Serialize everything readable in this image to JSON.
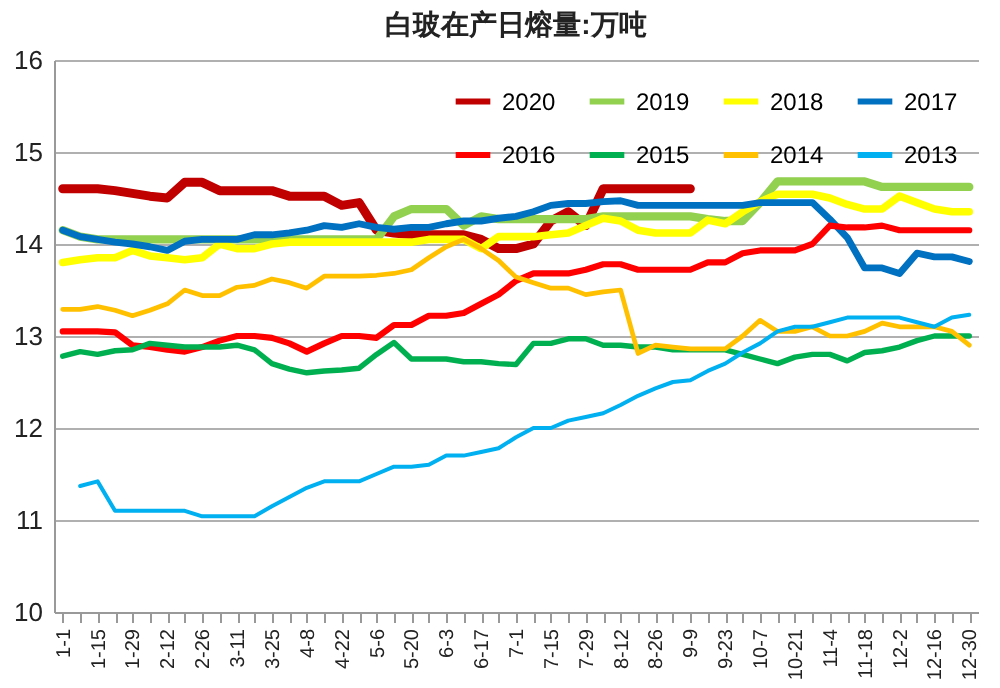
{
  "chart_data": {
    "type": "line",
    "title": "白玻在产日熔量:万吨",
    "categories": [
      "1-1",
      null,
      "1-15",
      null,
      "1-29",
      null,
      "2-12",
      null,
      "2-26",
      null,
      "3-11",
      null,
      "3-25",
      null,
      "4-8",
      null,
      "4-22",
      null,
      "5-6",
      null,
      "5-20",
      null,
      "6-3",
      null,
      "6-17",
      null,
      "7-1",
      null,
      "7-15",
      null,
      "7-29",
      null,
      "8-12",
      null,
      "8-26",
      null,
      "9-9",
      null,
      "9-23",
      null,
      "10-7",
      null,
      "10-21",
      null,
      "11-4",
      null,
      "11-18",
      null,
      "12-2",
      null,
      "12-16",
      null,
      "12-30"
    ],
    "ylim": [
      10,
      16
    ],
    "yticks": [
      10,
      11,
      12,
      13,
      14,
      15,
      16
    ],
    "grid": "y",
    "legend": "top right",
    "marker": "none",
    "series": [
      {
        "name": "2020",
        "color": "#c00000",
        "values": [
          14.6,
          14.6,
          14.6,
          14.58,
          14.55,
          14.52,
          14.5,
          14.67,
          14.67,
          14.58,
          14.58,
          14.58,
          14.58,
          14.52,
          14.52,
          14.52,
          14.42,
          14.45,
          14.15,
          14.12,
          14.1,
          14.1,
          14.1,
          14.1,
          14.05,
          13.95,
          13.95,
          14.0,
          14.25,
          14.35,
          14.2,
          14.6,
          14.6,
          14.6,
          14.6,
          14.6,
          14.6,
          null,
          null,
          null,
          null,
          null,
          null,
          null,
          null,
          null,
          null,
          null,
          null,
          null,
          null,
          null,
          null
        ]
      },
      {
        "name": "2019",
        "color": "#92d050",
        "values": [
          14.15,
          14.08,
          14.05,
          14.05,
          14.05,
          14.05,
          14.05,
          14.05,
          14.05,
          14.05,
          14.05,
          14.05,
          14.05,
          14.05,
          14.05,
          14.05,
          14.05,
          14.05,
          14.05,
          14.3,
          14.38,
          14.38,
          14.38,
          14.2,
          14.3,
          14.27,
          14.27,
          14.27,
          14.27,
          14.27,
          14.27,
          14.3,
          14.3,
          14.3,
          14.3,
          14.3,
          14.3,
          14.27,
          14.25,
          14.25,
          14.45,
          14.68,
          14.68,
          14.68,
          14.68,
          14.68,
          14.68,
          14.62,
          14.62,
          14.62,
          14.62,
          14.62,
          14.62
        ]
      },
      {
        "name": "2018",
        "color": "#ffff00",
        "values": [
          13.8,
          13.83,
          13.85,
          13.85,
          13.93,
          13.87,
          13.85,
          13.83,
          13.85,
          14.0,
          13.95,
          13.95,
          14.0,
          14.02,
          14.02,
          14.02,
          14.02,
          14.02,
          14.02,
          14.02,
          14.02,
          14.05,
          14.05,
          14.05,
          13.95,
          14.08,
          14.08,
          14.08,
          14.1,
          14.12,
          14.2,
          14.28,
          14.25,
          14.15,
          14.12,
          14.12,
          14.12,
          14.26,
          14.22,
          14.35,
          14.46,
          14.54,
          14.54,
          14.54,
          14.5,
          14.43,
          14.38,
          14.38,
          14.52,
          14.45,
          14.38,
          14.35,
          14.35
        ]
      },
      {
        "name": "2017",
        "color": "#0070c0",
        "values": [
          14.15,
          14.08,
          14.05,
          14.02,
          14.0,
          13.97,
          13.93,
          14.03,
          14.05,
          14.05,
          14.05,
          14.1,
          14.1,
          14.12,
          14.15,
          14.2,
          14.18,
          14.22,
          14.18,
          14.16,
          14.18,
          14.18,
          14.22,
          14.25,
          14.25,
          14.28,
          14.3,
          14.35,
          14.42,
          14.44,
          14.44,
          14.46,
          14.47,
          14.42,
          14.42,
          14.42,
          14.42,
          14.42,
          14.42,
          14.42,
          14.45,
          14.45,
          14.45,
          14.45,
          14.27,
          14.07,
          13.74,
          13.74,
          13.68,
          13.9,
          13.86,
          13.86,
          13.81
        ]
      },
      {
        "name": "2016",
        "color": "#ff0000",
        "values": [
          13.05,
          13.05,
          13.05,
          13.04,
          12.9,
          12.88,
          12.85,
          12.83,
          12.88,
          12.95,
          13.0,
          13.0,
          12.98,
          12.92,
          12.83,
          12.92,
          13.0,
          13.0,
          12.98,
          13.12,
          13.12,
          13.22,
          13.22,
          13.25,
          13.35,
          13.45,
          13.6,
          13.68,
          13.68,
          13.68,
          13.72,
          13.78,
          13.78,
          13.72,
          13.72,
          13.72,
          13.72,
          13.8,
          13.8,
          13.9,
          13.93,
          13.93,
          13.93,
          14.0,
          14.2,
          14.18,
          14.18,
          14.2,
          14.15,
          14.15,
          14.15,
          14.15,
          14.15
        ]
      },
      {
        "name": "2015",
        "color": "#00b050",
        "values": [
          12.78,
          12.83,
          12.8,
          12.84,
          12.85,
          12.92,
          12.9,
          12.88,
          12.88,
          12.88,
          12.9,
          12.85,
          12.7,
          12.64,
          12.6,
          12.62,
          12.63,
          12.65,
          12.8,
          12.93,
          12.75,
          12.75,
          12.75,
          12.72,
          12.72,
          12.7,
          12.69,
          12.92,
          12.92,
          12.97,
          12.97,
          12.9,
          12.9,
          12.88,
          12.88,
          12.85,
          12.85,
          12.85,
          12.85,
          12.8,
          12.75,
          12.7,
          12.77,
          12.8,
          12.8,
          12.73,
          12.82,
          12.84,
          12.88,
          12.95,
          13.0,
          13.0,
          13.0
        ]
      },
      {
        "name": "2014",
        "color": "#ffc000",
        "values": [
          13.29,
          13.29,
          13.32,
          13.28,
          13.22,
          13.28,
          13.35,
          13.5,
          13.44,
          13.44,
          13.53,
          13.55,
          13.62,
          13.58,
          13.52,
          13.65,
          13.65,
          13.65,
          13.66,
          13.68,
          13.72,
          13.85,
          13.97,
          14.05,
          13.95,
          13.82,
          13.64,
          13.58,
          13.52,
          13.52,
          13.45,
          13.48,
          13.5,
          12.81,
          12.9,
          12.88,
          12.86,
          12.86,
          12.86,
          13.0,
          13.17,
          13.05,
          13.05,
          13.1,
          13.0,
          13.0,
          13.05,
          13.14,
          13.1,
          13.1,
          13.1,
          13.05,
          12.9
        ]
      },
      {
        "name": "2013",
        "color": "#00b0f0",
        "values": [
          null,
          11.37,
          11.42,
          11.1,
          11.1,
          11.1,
          11.1,
          11.1,
          11.04,
          11.04,
          11.04,
          11.04,
          11.15,
          11.25,
          11.35,
          11.42,
          11.42,
          11.42,
          11.5,
          11.58,
          11.58,
          11.6,
          11.7,
          11.7,
          11.74,
          11.78,
          11.9,
          12.0,
          12.0,
          12.08,
          12.12,
          12.16,
          12.25,
          12.35,
          12.43,
          12.5,
          12.52,
          12.62,
          12.7,
          12.82,
          12.92,
          13.05,
          13.1,
          13.1,
          13.15,
          13.2,
          13.2,
          13.2,
          13.2,
          13.15,
          13.1,
          13.2,
          13.23
        ]
      }
    ]
  }
}
